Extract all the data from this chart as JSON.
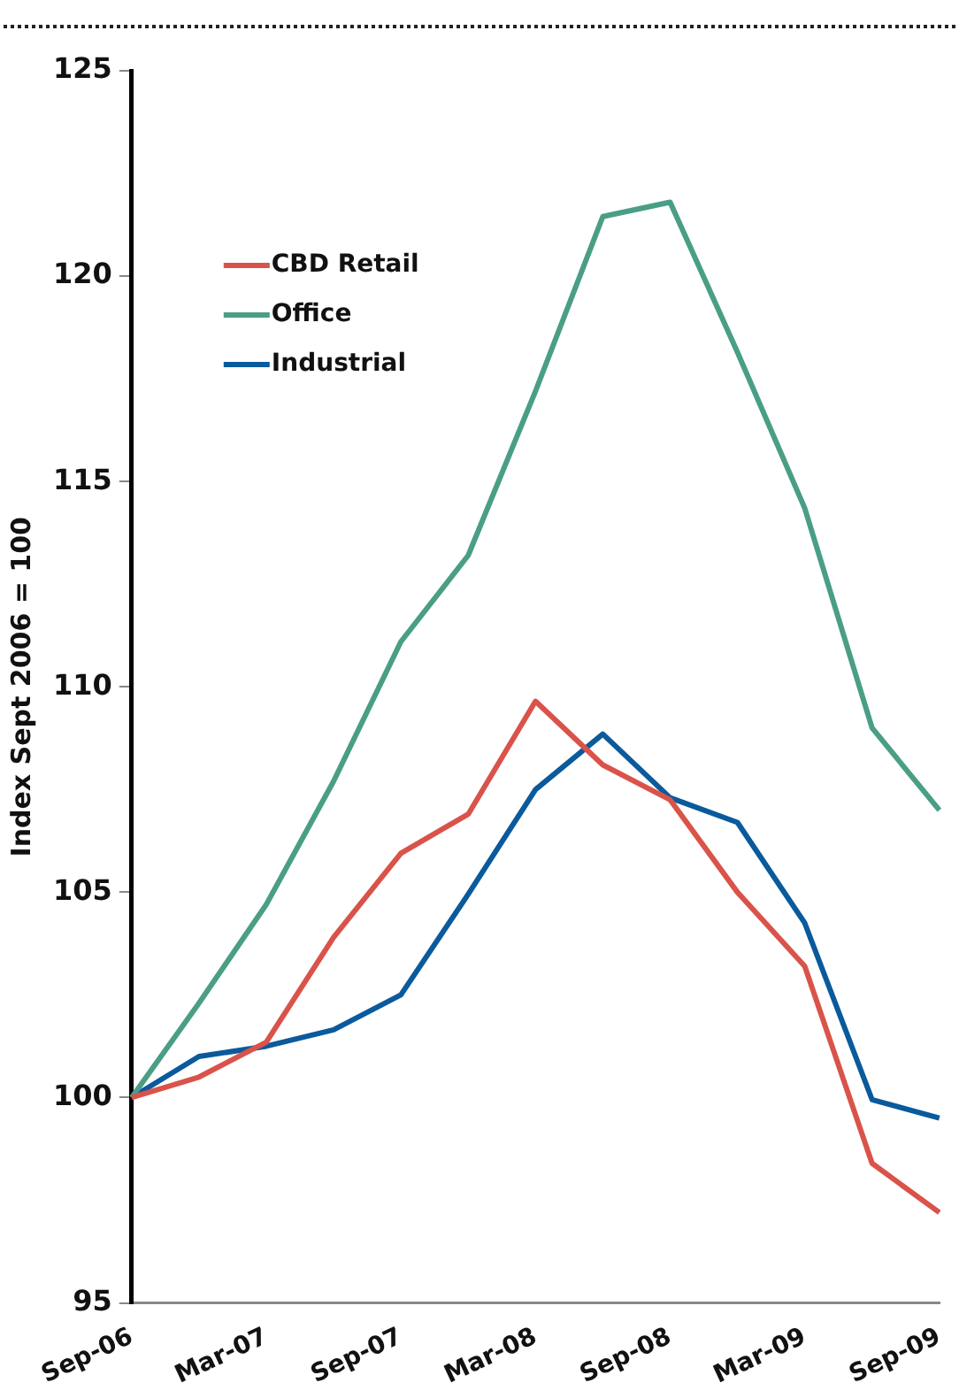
{
  "chart_data": {
    "type": "line",
    "ylabel": "Index Sept 2006 = 100",
    "categories": [
      "Sep-06",
      null,
      "Mar-07",
      null,
      "Sep-07",
      null,
      "Mar-08",
      null,
      "Sep-08",
      null,
      "Mar-09",
      null,
      "Sep-09"
    ],
    "series": [
      {
        "name": "CBD Retail",
        "color": "#d9534a",
        "values": [
          100,
          100.5,
          101.35,
          103.9,
          105.95,
          106.9,
          109.65,
          108.1,
          107.25,
          105.0,
          103.2,
          98.4,
          97.2
        ]
      },
      {
        "name": "Office",
        "color": "#4a9e86",
        "values": [
          100,
          102.3,
          104.7,
          107.7,
          111.1,
          113.2,
          117.2,
          121.45,
          121.8,
          118.15,
          114.35,
          109.0,
          107.0
        ]
      },
      {
        "name": "Industrial",
        "color": "#0a5a9c",
        "values": [
          100,
          101.0,
          101.25,
          101.65,
          102.5,
          104.95,
          107.5,
          108.85,
          107.3,
          106.7,
          104.25,
          99.95,
          99.5
        ]
      }
    ],
    "ylim": [
      95,
      125
    ],
    "yticks": [
      95,
      100,
      105,
      110,
      115,
      120,
      125
    ],
    "grid": false,
    "legend": "top left",
    "marker": "none",
    "line_style": "solid"
  }
}
